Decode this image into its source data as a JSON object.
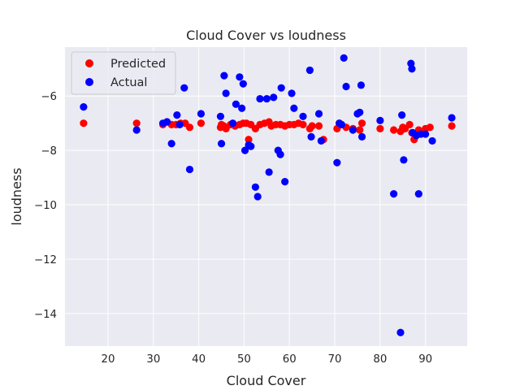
{
  "chart_data": {
    "type": "scatter",
    "title": "Cloud Cover vs loudness",
    "xlabel": "Cloud Cover",
    "ylabel": "loudness",
    "xlim": [
      10.5,
      99.2
    ],
    "ylim": [
      -15.2,
      -4.2
    ],
    "x_ticks": [
      20,
      30,
      40,
      50,
      60,
      70,
      80,
      90
    ],
    "y_ticks": [
      -14,
      -12,
      -10,
      -8,
      -6
    ],
    "grid": true,
    "legend_position": "top-left",
    "background_color": "#eaeaf2",
    "series": [
      {
        "name": "Predicted",
        "color": "#ff0000",
        "points": [
          [
            14.6,
            -7.0
          ],
          [
            26.3,
            -7.0
          ],
          [
            32.1,
            -7.05
          ],
          [
            33.0,
            -6.95
          ],
          [
            34.0,
            -7.05
          ],
          [
            35.0,
            -7.05
          ],
          [
            36.0,
            -7.0
          ],
          [
            37.0,
            -7.0
          ],
          [
            38.0,
            -7.15
          ],
          [
            40.5,
            -7.0
          ],
          [
            44.8,
            -7.15
          ],
          [
            45.0,
            -7.05
          ],
          [
            45.5,
            -7.1
          ],
          [
            46.0,
            -7.2
          ],
          [
            47.0,
            -7.05
          ],
          [
            48.0,
            -7.1
          ],
          [
            49.0,
            -7.05
          ],
          [
            49.8,
            -7.0
          ],
          [
            50.5,
            -7.0
          ],
          [
            51.0,
            -7.6
          ],
          [
            51.5,
            -7.05
          ],
          [
            52.5,
            -7.2
          ],
          [
            53.5,
            -7.05
          ],
          [
            54.5,
            -7.0
          ],
          [
            55.5,
            -6.95
          ],
          [
            56.0,
            -7.1
          ],
          [
            57.0,
            -7.05
          ],
          [
            58.0,
            -7.05
          ],
          [
            59.0,
            -7.1
          ],
          [
            60.0,
            -7.05
          ],
          [
            61.0,
            -7.05
          ],
          [
            62.0,
            -7.0
          ],
          [
            63.0,
            -7.05
          ],
          [
            64.5,
            -7.2
          ],
          [
            65.0,
            -7.1
          ],
          [
            66.5,
            -7.1
          ],
          [
            67.5,
            -7.6
          ],
          [
            70.5,
            -7.2
          ],
          [
            71.0,
            -7.0
          ],
          [
            72.5,
            -7.15
          ],
          [
            74.0,
            -7.2
          ],
          [
            75.5,
            -7.25
          ],
          [
            76.0,
            -7.0
          ],
          [
            80.0,
            -7.2
          ],
          [
            83.0,
            -7.25
          ],
          [
            84.5,
            -7.3
          ],
          [
            85.0,
            -7.15
          ],
          [
            85.5,
            -7.2
          ],
          [
            86.5,
            -7.05
          ],
          [
            87.0,
            -7.35
          ],
          [
            87.5,
            -7.6
          ],
          [
            88.5,
            -7.25
          ],
          [
            89.0,
            -7.35
          ],
          [
            90.0,
            -7.2
          ],
          [
            91.0,
            -7.15
          ],
          [
            95.8,
            -7.1
          ]
        ]
      },
      {
        "name": "Actual",
        "color": "#0000ff",
        "points": [
          [
            14.6,
            -6.4
          ],
          [
            26.3,
            -7.25
          ],
          [
            32.1,
            -7.0
          ],
          [
            33.0,
            -6.95
          ],
          [
            34.0,
            -7.75
          ],
          [
            35.2,
            -6.7
          ],
          [
            35.8,
            -7.05
          ],
          [
            36.8,
            -5.7
          ],
          [
            38.0,
            -8.7
          ],
          [
            40.5,
            -6.65
          ],
          [
            44.8,
            -6.75
          ],
          [
            45.0,
            -7.75
          ],
          [
            45.6,
            -5.25
          ],
          [
            46.0,
            -5.9
          ],
          [
            47.5,
            -7.0
          ],
          [
            48.2,
            -6.3
          ],
          [
            49.0,
            -5.3
          ],
          [
            49.5,
            -6.45
          ],
          [
            49.8,
            -5.55
          ],
          [
            50.2,
            -8.0
          ],
          [
            51.0,
            -7.8
          ],
          [
            51.5,
            -7.85
          ],
          [
            52.5,
            -9.35
          ],
          [
            53.0,
            -9.7
          ],
          [
            53.5,
            -6.1
          ],
          [
            55.0,
            -6.1
          ],
          [
            55.5,
            -8.8
          ],
          [
            56.5,
            -6.05
          ],
          [
            57.5,
            -8.0
          ],
          [
            58.0,
            -8.15
          ],
          [
            58.2,
            -5.7
          ],
          [
            59.0,
            -9.15
          ],
          [
            60.5,
            -5.9
          ],
          [
            61.0,
            -6.45
          ],
          [
            63.0,
            -6.75
          ],
          [
            64.5,
            -5.05
          ],
          [
            64.8,
            -7.5
          ],
          [
            66.5,
            -6.65
          ],
          [
            67.0,
            -7.65
          ],
          [
            70.5,
            -8.45
          ],
          [
            71.0,
            -7.0
          ],
          [
            71.5,
            -7.05
          ],
          [
            72.0,
            -4.6
          ],
          [
            72.5,
            -5.65
          ],
          [
            74.0,
            -7.25
          ],
          [
            75.0,
            -6.65
          ],
          [
            75.5,
            -6.6
          ],
          [
            75.8,
            -5.6
          ],
          [
            76.0,
            -7.5
          ],
          [
            80.0,
            -6.9
          ],
          [
            83.0,
            -9.6
          ],
          [
            84.5,
            -14.7
          ],
          [
            84.8,
            -6.7
          ],
          [
            85.2,
            -8.35
          ],
          [
            86.8,
            -4.8
          ],
          [
            87.0,
            -5.0
          ],
          [
            87.2,
            -7.35
          ],
          [
            88.0,
            -7.45
          ],
          [
            88.5,
            -9.6
          ],
          [
            89.0,
            -7.4
          ],
          [
            90.0,
            -7.4
          ],
          [
            91.5,
            -7.65
          ],
          [
            95.8,
            -6.8
          ]
        ]
      }
    ]
  }
}
